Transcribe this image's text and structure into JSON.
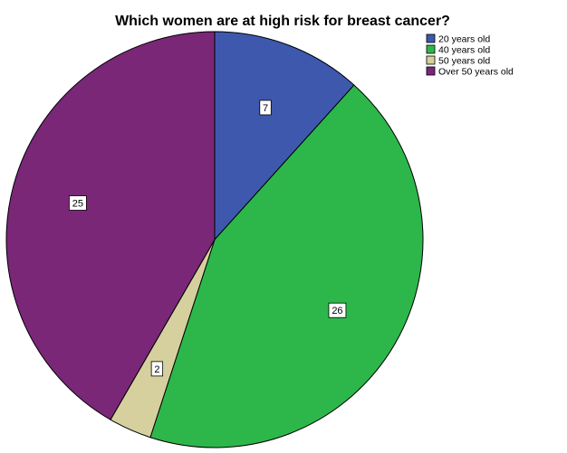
{
  "chart_data": {
    "type": "pie",
    "title": "Which women are at high risk for breast cancer?",
    "categories": [
      "20 years old",
      "40 years old",
      "50 years old",
      "Over 50 years old"
    ],
    "values": [
      7,
      26,
      2,
      25
    ],
    "colors": [
      "#3e58ae",
      "#2db74a",
      "#d6d09e",
      "#7a2778"
    ],
    "start_angle_deg": 0,
    "direction": "clockwise",
    "data_labels": true,
    "legend_position": "top-right"
  }
}
